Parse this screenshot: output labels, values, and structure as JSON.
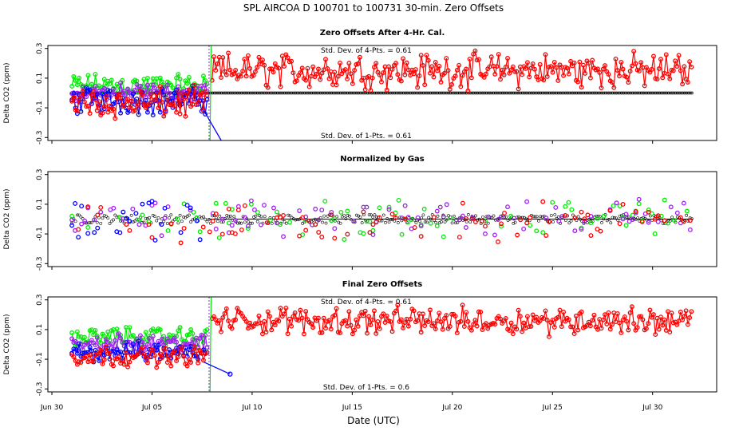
{
  "chart_data": {
    "type": "scatter",
    "title": "SPL   AIRCOA D   100701 to 100731   30-min. Zero Offsets",
    "xlabel": "Date (UTC)",
    "x_ticks": [
      {
        "day": 0,
        "label": "Jun 30"
      },
      {
        "day": 5,
        "label": "Jul 05"
      },
      {
        "day": 10,
        "label": "Jul 10"
      },
      {
        "day": 15,
        "label": "Jul 15"
      },
      {
        "day": 20,
        "label": "Jul 20"
      },
      {
        "day": 25,
        "label": "Jul 25"
      },
      {
        "day": 30,
        "label": "Jul 30"
      }
    ],
    "xlim": [
      -0.2,
      33.2
    ],
    "series_colors": {
      "red": "#ff0000",
      "green": "#00ee00",
      "blue": "#0000ff",
      "purple": "#a020f0",
      "black": "#000000"
    },
    "panels": [
      {
        "title": "Zero Offsets After 4-Hr. Cal.",
        "ylabel": "Delta CO2 (ppm)",
        "ylim": [
          -0.32,
          0.32
        ],
        "yticks": [
          -0.3,
          -0.1,
          0.1,
          0.3
        ],
        "yticklabels": [
          "-0.3",
          "-0.1",
          "0.1",
          "0.3"
        ],
        "ann_top": "Std. Dev. of 4-Pts. = 0.61",
        "ann_bottom": "Std. Dev. of 1-Pts. = 0.61",
        "reference_line": 0.0,
        "series": [
          {
            "name": "green",
            "color": "#00ee00",
            "x_range": [
              1.0,
              7.8
            ],
            "center": 0.05,
            "spread": 0.06
          },
          {
            "name": "purple",
            "color": "#a020f0",
            "x_range": [
              1.0,
              7.8
            ],
            "center": 0.0,
            "spread": 0.05
          },
          {
            "name": "blue",
            "color": "#0000ff",
            "x_range": [
              1.0,
              7.8
            ],
            "center": -0.05,
            "spread": 0.07
          },
          {
            "name": "red",
            "color": "#ff0000",
            "x_range": [
              1.0,
              7.8
            ],
            "center": -0.07,
            "spread": 0.08
          },
          {
            "name": "red",
            "color": "#ff0000",
            "x_range": [
              8.0,
              32.0
            ],
            "center": 0.15,
            "spread": 0.09
          }
        ]
      },
      {
        "title": "Normalized by Gas",
        "ylabel": "Delta CO2 (ppm)",
        "ylim": [
          -0.32,
          0.32
        ],
        "yticks": [
          -0.3,
          -0.1,
          0.1,
          0.3
        ],
        "yticklabels": [
          "-0.3",
          "-0.1",
          "0.1",
          "0.3"
        ],
        "reference_line": 0.0,
        "series": [
          {
            "name": "green",
            "color": "#00ee00",
            "x_range": [
              1.0,
              32.0
            ],
            "center": 0.0,
            "spread": 0.1
          },
          {
            "name": "purple",
            "color": "#a020f0",
            "x_range": [
              1.0,
              32.0
            ],
            "center": 0.0,
            "spread": 0.09
          },
          {
            "name": "blue",
            "color": "#0000ff",
            "x_range": [
              1.0,
              7.8
            ],
            "center": -0.02,
            "spread": 0.1
          },
          {
            "name": "red",
            "color": "#ff0000",
            "x_range": [
              1.0,
              32.0
            ],
            "center": -0.02,
            "spread": 0.1
          }
        ]
      },
      {
        "title": "Final Zero Offsets",
        "ylabel": "Delta CO2 (ppm)",
        "ylim": [
          -0.32,
          0.32
        ],
        "yticks": [
          -0.3,
          -0.1,
          0.1,
          0.3
        ],
        "yticklabels": [
          "-0.3",
          "-0.1",
          "0.1",
          "0.3"
        ],
        "ann_top": "Std. Dev. of 4-Pts. = 0.61",
        "ann_bottom": "Std. Dev. of 1-Pts. = 0.6",
        "series": [
          {
            "name": "green",
            "color": "#00ee00",
            "x_range": [
              1.0,
              7.8
            ],
            "center": 0.05,
            "spread": 0.05
          },
          {
            "name": "purple",
            "color": "#a020f0",
            "x_range": [
              1.0,
              7.8
            ],
            "center": 0.0,
            "spread": 0.05
          },
          {
            "name": "blue",
            "color": "#0000ff",
            "x_range": [
              1.0,
              7.8
            ],
            "center": -0.05,
            "spread": 0.05
          },
          {
            "name": "red",
            "color": "#ff0000",
            "x_range": [
              1.0,
              7.8
            ],
            "center": -0.08,
            "spread": 0.05
          },
          {
            "name": "red",
            "color": "#ff0000",
            "x_range": [
              8.0,
              32.0
            ],
            "center": 0.16,
            "spread": 0.07
          }
        ]
      }
    ]
  }
}
